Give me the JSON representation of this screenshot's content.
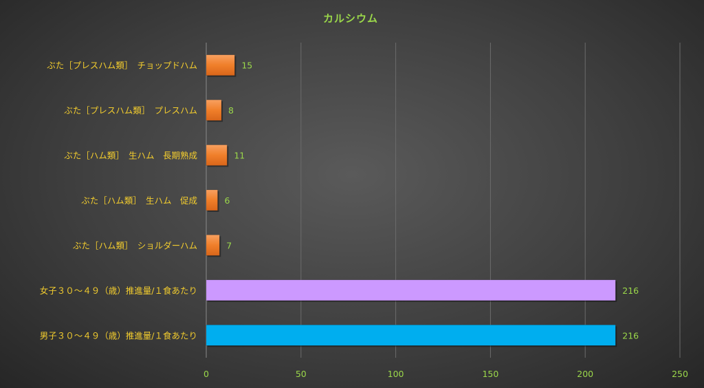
{
  "chart_data": {
    "type": "bar",
    "orientation": "horizontal",
    "title": "カルシウム",
    "categories": [
      "ぶた［プレスハム類］　チョップドハム",
      "ぶた［プレスハム類］　プレスハム",
      "ぶた［ハム類］　生ハム　長期熟成",
      "ぶた［ハム類］　生ハム　促成",
      "ぶた［ハム類］　ショルダーハム",
      "女子３０～４９（歳）推進量/１食あたり",
      "男子３０～４９（歳）推進量/１食あたり"
    ],
    "values": [
      15,
      8,
      11,
      6,
      7,
      216,
      216
    ],
    "bar_colors": [
      "#f07f2a",
      "#f07f2a",
      "#f07f2a",
      "#f07f2a",
      "#f07f2a",
      "#cc99ff",
      "#00aeef"
    ],
    "xlim": [
      0,
      250
    ],
    "xticks": [
      0,
      50,
      100,
      150,
      200,
      250
    ],
    "grid": true,
    "legend": "none",
    "colors": {
      "title": "#9bd84a",
      "category_text": "#f2cc2e",
      "tick_text": "#9bd84a",
      "data_label": "#9bd84a"
    }
  }
}
